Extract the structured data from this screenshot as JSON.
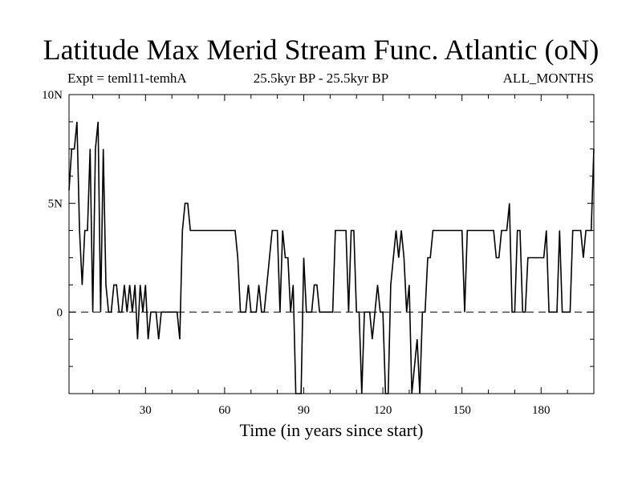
{
  "chart_data": {
    "type": "line",
    "title": "Latitude Max Merid Stream Func. Atlantic (oN)",
    "subtitle_left": "Expt = teml11-temhA",
    "subtitle_center": "25.5kyr BP - 25.5kyr BP",
    "subtitle_right": "ALL_MONTHS",
    "xlabel": "Time (in years since start)",
    "ylabel": "",
    "xlim": [
      1,
      200
    ],
    "ylim": [
      -3.75,
      10
    ],
    "xticks": [
      30,
      60,
      90,
      120,
      150,
      180
    ],
    "xtick_labels": [
      "30",
      "60",
      "90",
      "120",
      "150",
      "180"
    ],
    "yticks": [
      0,
      5,
      10
    ],
    "ytick_labels": [
      "0",
      "5N",
      "10N"
    ],
    "reference_line": 0,
    "series": [
      {
        "name": "Latitude Max Merid Stream Func. Atlantic",
        "values": [
          [
            1,
            5.6
          ],
          [
            2,
            7.5
          ],
          [
            3,
            7.5
          ],
          [
            4,
            8.75
          ],
          [
            5,
            3.75
          ],
          [
            6,
            1.25
          ],
          [
            7,
            3.75
          ],
          [
            8,
            3.75
          ],
          [
            9,
            7.5
          ],
          [
            10,
            0
          ],
          [
            11,
            7.5
          ],
          [
            12,
            8.75
          ],
          [
            13,
            0
          ],
          [
            14,
            7.5
          ],
          [
            15,
            1.25
          ],
          [
            16,
            0
          ],
          [
            17,
            0
          ],
          [
            18,
            1.25
          ],
          [
            19,
            1.25
          ],
          [
            20,
            0
          ],
          [
            21,
            0
          ],
          [
            22,
            1.25
          ],
          [
            23,
            0
          ],
          [
            24,
            1.25
          ],
          [
            25,
            0
          ],
          [
            26,
            1.25
          ],
          [
            27,
            -1.25
          ],
          [
            28,
            1.25
          ],
          [
            29,
            0
          ],
          [
            30,
            1.25
          ],
          [
            31,
            -1.25
          ],
          [
            32,
            0
          ],
          [
            33,
            0
          ],
          [
            34,
            0
          ],
          [
            35,
            -1.25
          ],
          [
            36,
            0
          ],
          [
            37,
            0
          ],
          [
            38,
            0
          ],
          [
            39,
            0
          ],
          [
            40,
            0
          ],
          [
            41,
            0
          ],
          [
            42,
            0
          ],
          [
            43,
            -1.25
          ],
          [
            44,
            3.75
          ],
          [
            45,
            5
          ],
          [
            46,
            5
          ],
          [
            47,
            3.75
          ],
          [
            48,
            3.75
          ],
          [
            49,
            3.75
          ],
          [
            50,
            3.75
          ],
          [
            51,
            3.75
          ],
          [
            52,
            3.75
          ],
          [
            53,
            3.75
          ],
          [
            54,
            3.75
          ],
          [
            55,
            3.75
          ],
          [
            56,
            3.75
          ],
          [
            57,
            3.75
          ],
          [
            58,
            3.75
          ],
          [
            59,
            3.75
          ],
          [
            60,
            3.75
          ],
          [
            61,
            3.75
          ],
          [
            62,
            3.75
          ],
          [
            63,
            3.75
          ],
          [
            64,
            3.75
          ],
          [
            65,
            2.5
          ],
          [
            66,
            0
          ],
          [
            67,
            0
          ],
          [
            68,
            0
          ],
          [
            69,
            1.25
          ],
          [
            70,
            0
          ],
          [
            71,
            0
          ],
          [
            72,
            0
          ],
          [
            73,
            1.25
          ],
          [
            74,
            0
          ],
          [
            75,
            0
          ],
          [
            76,
            1.25
          ],
          [
            77,
            2.5
          ],
          [
            78,
            3.75
          ],
          [
            79,
            3.75
          ],
          [
            80,
            3.75
          ],
          [
            81,
            0
          ],
          [
            82,
            3.75
          ],
          [
            83,
            2.5
          ],
          [
            84,
            2.5
          ],
          [
            85,
            0
          ],
          [
            86,
            1.25
          ],
          [
            87,
            -3.75
          ],
          [
            88,
            -3.75
          ],
          [
            89,
            -3.75
          ],
          [
            90,
            2.5
          ],
          [
            91,
            0
          ],
          [
            92,
            0
          ],
          [
            93,
            0
          ],
          [
            94,
            1.25
          ],
          [
            95,
            1.25
          ],
          [
            96,
            0
          ],
          [
            97,
            0
          ],
          [
            98,
            0
          ],
          [
            99,
            0
          ],
          [
            100,
            0
          ],
          [
            101,
            0
          ],
          [
            102,
            3.75
          ],
          [
            103,
            3.75
          ],
          [
            104,
            3.75
          ],
          [
            105,
            3.75
          ],
          [
            106,
            3.75
          ],
          [
            107,
            0
          ],
          [
            108,
            3.75
          ],
          [
            109,
            3.75
          ],
          [
            110,
            0
          ],
          [
            111,
            0
          ],
          [
            112,
            -3.75
          ],
          [
            113,
            0
          ],
          [
            114,
            0
          ],
          [
            115,
            0
          ],
          [
            116,
            -1.25
          ],
          [
            117,
            0
          ],
          [
            118,
            1.25
          ],
          [
            119,
            0
          ],
          [
            120,
            0
          ],
          [
            121,
            -3.75
          ],
          [
            122,
            -3.75
          ],
          [
            123,
            1.25
          ],
          [
            124,
            2.5
          ],
          [
            125,
            3.75
          ],
          [
            126,
            2.5
          ],
          [
            127,
            3.75
          ],
          [
            128,
            2.5
          ],
          [
            129,
            0
          ],
          [
            130,
            1.25
          ],
          [
            131,
            -3.75
          ],
          [
            132,
            -2.5
          ],
          [
            133,
            -1.25
          ],
          [
            134,
            -3.75
          ],
          [
            135,
            0
          ],
          [
            136,
            0
          ],
          [
            137,
            2.5
          ],
          [
            138,
            2.5
          ],
          [
            139,
            3.75
          ],
          [
            140,
            3.75
          ],
          [
            141,
            3.75
          ],
          [
            142,
            3.75
          ],
          [
            143,
            3.75
          ],
          [
            144,
            3.75
          ],
          [
            145,
            3.75
          ],
          [
            146,
            3.75
          ],
          [
            147,
            3.75
          ],
          [
            148,
            3.75
          ],
          [
            149,
            3.75
          ],
          [
            150,
            3.75
          ],
          [
            151,
            0
          ],
          [
            152,
            3.75
          ],
          [
            153,
            3.75
          ],
          [
            154,
            3.75
          ],
          [
            155,
            3.75
          ],
          [
            156,
            3.75
          ],
          [
            157,
            3.75
          ],
          [
            158,
            3.75
          ],
          [
            159,
            3.75
          ],
          [
            160,
            3.75
          ],
          [
            161,
            3.75
          ],
          [
            162,
            3.75
          ],
          [
            163,
            2.5
          ],
          [
            164,
            2.5
          ],
          [
            165,
            3.75
          ],
          [
            166,
            3.75
          ],
          [
            167,
            3.75
          ],
          [
            168,
            5
          ],
          [
            169,
            0
          ],
          [
            170,
            0
          ],
          [
            171,
            3.75
          ],
          [
            172,
            3.75
          ],
          [
            173,
            0
          ],
          [
            174,
            0
          ],
          [
            175,
            2.5
          ],
          [
            176,
            2.5
          ],
          [
            177,
            2.5
          ],
          [
            178,
            2.5
          ],
          [
            179,
            2.5
          ],
          [
            180,
            2.5
          ],
          [
            181,
            2.5
          ],
          [
            182,
            3.75
          ],
          [
            183,
            0
          ],
          [
            184,
            0
          ],
          [
            185,
            0
          ],
          [
            186,
            0
          ],
          [
            187,
            3.75
          ],
          [
            188,
            0
          ],
          [
            189,
            0
          ],
          [
            190,
            0
          ],
          [
            191,
            0
          ],
          [
            192,
            3.75
          ],
          [
            193,
            3.75
          ],
          [
            194,
            3.75
          ],
          [
            195,
            3.75
          ],
          [
            196,
            2.5
          ],
          [
            197,
            3.75
          ],
          [
            198,
            3.75
          ],
          [
            199,
            3.75
          ],
          [
            200,
            7.5
          ]
        ]
      }
    ]
  }
}
